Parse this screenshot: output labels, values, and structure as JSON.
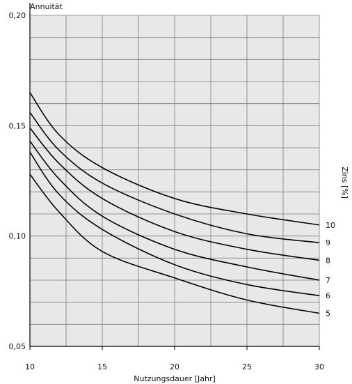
{
  "chart_data": {
    "type": "line",
    "ylabel": "Annuität",
    "xlabel": "Nutzungsdauer [Jahr]",
    "legend_title": "Zins [%]",
    "xlim": [
      10,
      30
    ],
    "ylim": [
      0.05,
      0.2
    ],
    "x_ticks": [
      10,
      15,
      20,
      25,
      30
    ],
    "x_tick_labels": [
      "10",
      "15",
      "20",
      "25",
      "30"
    ],
    "y_ticks": [
      0.05,
      0.1,
      0.15,
      0.2
    ],
    "y_tick_labels": [
      "0,05",
      "0,10",
      "0,15",
      "0,20"
    ],
    "grid": true,
    "background": "#e8e8e8",
    "line_color": "#000000",
    "x": [
      10,
      12,
      15,
      20,
      25,
      30
    ],
    "series": [
      {
        "name": "5",
        "values": [
          0.128,
          0.111,
          0.093,
          0.081,
          0.071,
          0.065
        ]
      },
      {
        "name": "6",
        "values": [
          0.138,
          0.119,
          0.103,
          0.087,
          0.078,
          0.073
        ]
      },
      {
        "name": "7",
        "values": [
          0.143,
          0.126,
          0.109,
          0.094,
          0.086,
          0.08
        ]
      },
      {
        "name": "8",
        "values": [
          0.149,
          0.133,
          0.117,
          0.102,
          0.094,
          0.089
        ]
      },
      {
        "name": "9",
        "values": [
          0.156,
          0.139,
          0.124,
          0.11,
          0.101,
          0.097
        ]
      },
      {
        "name": "10",
        "values": [
          0.165,
          0.146,
          0.131,
          0.117,
          0.11,
          0.105
        ]
      }
    ]
  }
}
